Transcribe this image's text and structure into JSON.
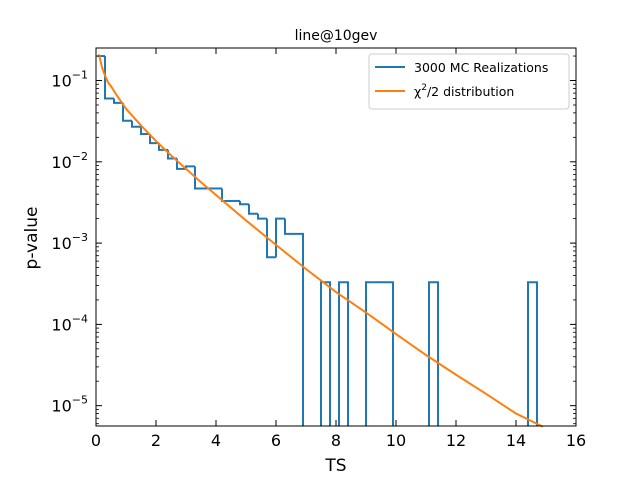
{
  "chart_data": {
    "type": "line",
    "title": "line@10gev",
    "xlabel": "TS",
    "ylabel": "p-value",
    "xlim": [
      0,
      16
    ],
    "ylim_log10": [
      -5.25,
      -0.6
    ],
    "yscale": "log",
    "x_ticks": [
      0,
      2,
      4,
      6,
      8,
      10,
      12,
      14,
      16
    ],
    "y_tick_exponents": [
      -1,
      -2,
      -3,
      -4,
      -5
    ],
    "y_tick_base": "10",
    "legend": {
      "position": "top-right",
      "entries": [
        {
          "label": "3000 MC Realizations",
          "color": "#1f77b4"
        },
        {
          "label_base": "χ",
          "label_sup": "2",
          "label_rest": "/2 distribution",
          "color": "#ff7f0e"
        }
      ]
    },
    "series": [
      {
        "name": "3000 MC Realizations",
        "kind": "step-histogram",
        "color": "#1f77b4",
        "bin_edges": [
          0.05,
          0.3,
          0.6,
          0.9,
          1.2,
          1.5,
          1.8,
          2.1,
          2.4,
          2.7,
          3.0,
          3.3,
          3.6,
          3.9,
          4.2,
          4.5,
          4.8,
          5.1,
          5.4,
          5.7,
          6.0,
          6.3,
          6.6,
          6.9,
          7.2,
          7.5,
          7.8,
          8.1,
          8.4,
          8.7,
          9.0,
          9.3,
          9.6,
          9.9,
          10.2,
          10.5,
          10.8,
          11.1,
          11.4,
          11.7,
          12.0,
          12.3,
          12.6,
          12.9,
          13.2,
          13.5,
          13.8,
          14.1,
          14.4,
          14.7
        ],
        "values": [
          0.2,
          0.06,
          0.053,
          0.032,
          0.027,
          0.022,
          0.017,
          0.014,
          0.011,
          0.0082,
          0.0088,
          0.0047,
          0.0047,
          0.0047,
          0.0033,
          0.0033,
          0.003,
          0.0023,
          0.002,
          0.00067,
          0.002,
          0.0013,
          0.0013,
          null,
          null,
          0.00033,
          null,
          0.00033,
          null,
          null,
          0.00033,
          0.00033,
          0.00033,
          null,
          null,
          null,
          null,
          0.00033,
          null,
          null,
          null,
          null,
          null,
          null,
          null,
          null,
          null,
          null,
          0.00033
        ]
      },
      {
        "name": "χ²/2 distribution",
        "kind": "curve",
        "color": "#ff7f0e",
        "x": [
          0.1,
          0.2,
          0.3,
          0.4,
          0.5,
          0.7,
          1.0,
          1.5,
          2.0,
          2.5,
          3.0,
          3.5,
          4.0,
          5.0,
          6.0,
          7.0,
          8.0,
          9.0,
          10.0,
          11.0,
          12.0,
          13.0,
          14.0,
          14.9
        ],
        "y": [
          0.21,
          0.145,
          0.115,
          0.095,
          0.085,
          0.065,
          0.045,
          0.028,
          0.018,
          0.012,
          0.0082,
          0.0056,
          0.0039,
          0.0019,
          0.00095,
          0.00048,
          0.00025,
          0.00014,
          7.6e-05,
          4.2e-05,
          2.4e-05,
          1.4e-05,
          8e-06,
          5.5e-06
        ]
      }
    ]
  }
}
